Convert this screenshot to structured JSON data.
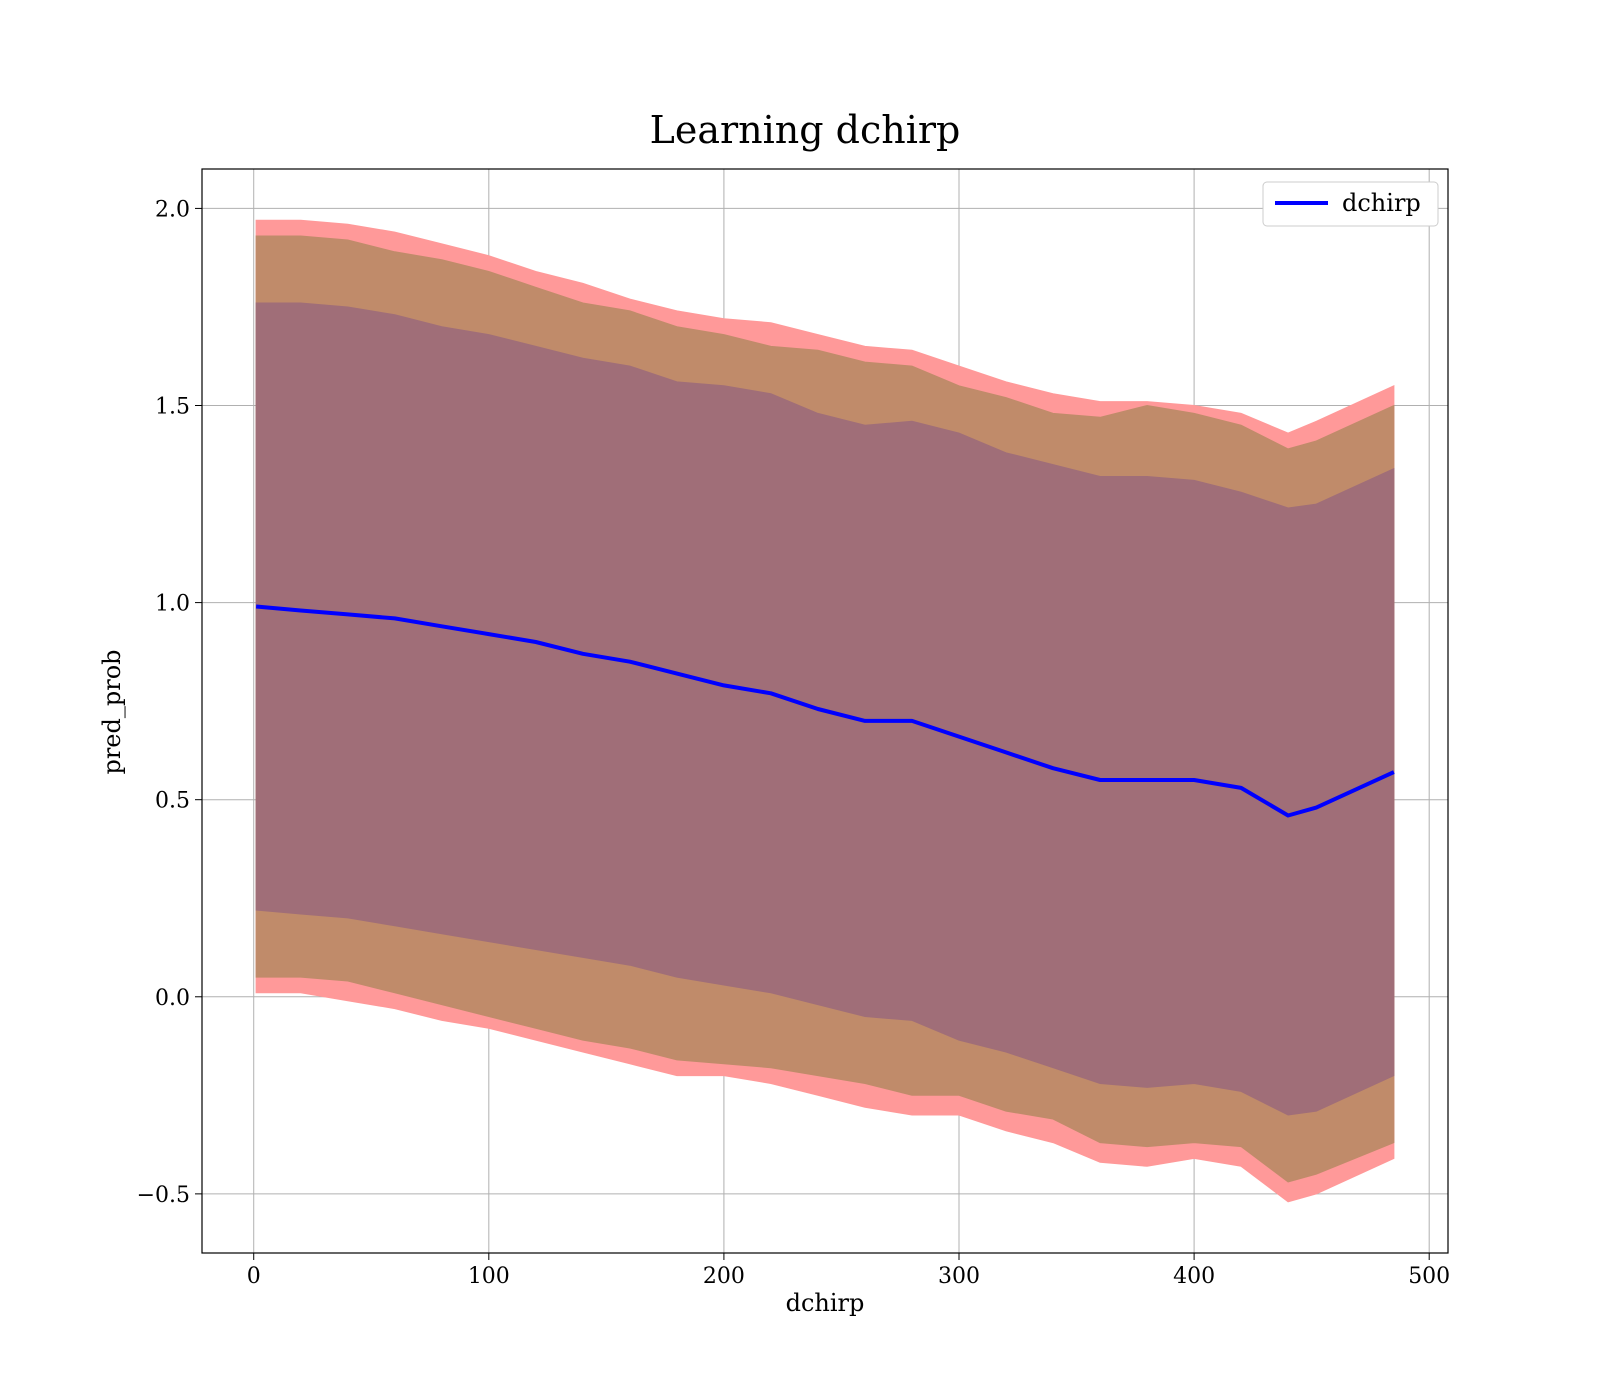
{
  "chart_data": {
    "type": "line",
    "title": "Learning dchirp",
    "xlabel": "dchirp",
    "ylabel": "pred_prob",
    "xlim": [
      -22,
      508
    ],
    "ylim": [
      -0.65,
      2.1
    ],
    "x_ticks": [
      0,
      100,
      200,
      300,
      400,
      500
    ],
    "x_tick_labels": [
      "0",
      "100",
      "200",
      "300",
      "400",
      "500"
    ],
    "y_ticks": [
      -0.5,
      0.0,
      0.5,
      1.0,
      1.5,
      2.0
    ],
    "y_tick_labels": [
      "−0.5",
      "0.0",
      "0.5",
      "1.0",
      "1.5",
      "2.0"
    ],
    "grid": true,
    "legend_position": "top-right",
    "colors": {
      "line": "#0000ff",
      "band_outer": "#ff9999",
      "band_middle": "#c08b6a",
      "band_inner": "#a06e78",
      "grid": "#b0b0b0"
    },
    "series": [
      {
        "name": "dchirp",
        "x": [
          1,
          20,
          40,
          60,
          80,
          100,
          120,
          140,
          160,
          180,
          200,
          220,
          240,
          260,
          280,
          300,
          320,
          340,
          360,
          380,
          400,
          420,
          440,
          452,
          485
        ],
        "values": [
          0.99,
          0.98,
          0.97,
          0.96,
          0.94,
          0.92,
          0.9,
          0.87,
          0.85,
          0.82,
          0.79,
          0.77,
          0.73,
          0.7,
          0.7,
          0.66,
          0.62,
          0.58,
          0.55,
          0.55,
          0.55,
          0.53,
          0.46,
          0.48,
          0.57
        ]
      }
    ],
    "bands": [
      {
        "role": "outer",
        "x": [
          1,
          20,
          40,
          60,
          80,
          100,
          120,
          140,
          160,
          180,
          200,
          220,
          240,
          260,
          280,
          300,
          320,
          340,
          360,
          380,
          400,
          420,
          440,
          452,
          485
        ],
        "upper": [
          1.97,
          1.97,
          1.96,
          1.94,
          1.91,
          1.88,
          1.84,
          1.81,
          1.77,
          1.74,
          1.72,
          1.71,
          1.68,
          1.65,
          1.64,
          1.6,
          1.56,
          1.53,
          1.51,
          1.51,
          1.5,
          1.48,
          1.43,
          1.46,
          1.55
        ],
        "lower": [
          0.01,
          0.01,
          -0.01,
          -0.03,
          -0.06,
          -0.08,
          -0.11,
          -0.14,
          -0.17,
          -0.2,
          -0.2,
          -0.22,
          -0.25,
          -0.28,
          -0.3,
          -0.3,
          -0.34,
          -0.37,
          -0.42,
          -0.43,
          -0.41,
          -0.43,
          -0.52,
          -0.5,
          -0.41
        ]
      },
      {
        "role": "middle",
        "x": [
          1,
          20,
          40,
          60,
          80,
          100,
          120,
          140,
          160,
          180,
          200,
          220,
          240,
          260,
          280,
          300,
          320,
          340,
          360,
          380,
          400,
          420,
          440,
          452,
          485
        ],
        "upper": [
          1.93,
          1.93,
          1.92,
          1.89,
          1.87,
          1.84,
          1.8,
          1.76,
          1.74,
          1.7,
          1.68,
          1.65,
          1.64,
          1.61,
          1.6,
          1.55,
          1.52,
          1.48,
          1.47,
          1.5,
          1.48,
          1.45,
          1.39,
          1.41,
          1.5
        ],
        "lower": [
          0.05,
          0.05,
          0.04,
          0.01,
          -0.02,
          -0.05,
          -0.08,
          -0.11,
          -0.13,
          -0.16,
          -0.17,
          -0.18,
          -0.2,
          -0.22,
          -0.25,
          -0.25,
          -0.29,
          -0.31,
          -0.37,
          -0.38,
          -0.37,
          -0.38,
          -0.47,
          -0.45,
          -0.37
        ]
      },
      {
        "role": "inner",
        "x": [
          1,
          20,
          40,
          60,
          80,
          100,
          120,
          140,
          160,
          180,
          200,
          220,
          240,
          260,
          280,
          300,
          320,
          340,
          360,
          380,
          400,
          420,
          440,
          452,
          485
        ],
        "upper": [
          1.76,
          1.76,
          1.75,
          1.73,
          1.7,
          1.68,
          1.65,
          1.62,
          1.6,
          1.56,
          1.55,
          1.53,
          1.48,
          1.45,
          1.46,
          1.43,
          1.38,
          1.35,
          1.32,
          1.32,
          1.31,
          1.28,
          1.24,
          1.25,
          1.34
        ],
        "lower": [
          0.22,
          0.21,
          0.2,
          0.18,
          0.16,
          0.14,
          0.12,
          0.1,
          0.08,
          0.05,
          0.03,
          0.01,
          -0.02,
          -0.05,
          -0.06,
          -0.11,
          -0.14,
          -0.18,
          -0.22,
          -0.23,
          -0.22,
          -0.24,
          -0.3,
          -0.29,
          -0.2
        ]
      }
    ]
  }
}
